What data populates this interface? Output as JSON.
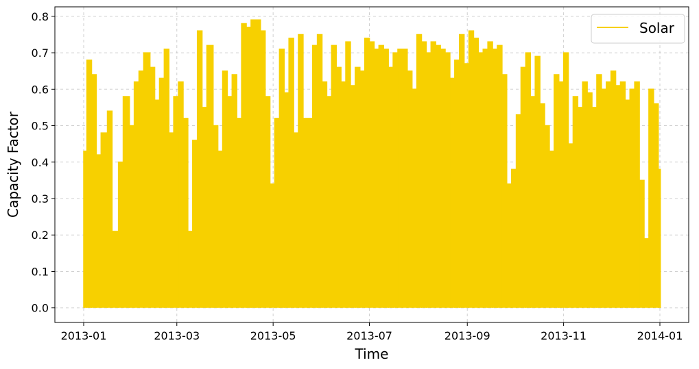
{
  "chart_data": {
    "type": "line",
    "xlabel": "Time",
    "ylabel": "Capacity Factor",
    "x_range": [
      "2013-01-01",
      "2014-01-01"
    ],
    "ylim": [
      -0.04,
      0.826
    ],
    "x_ticks": [
      "2013-01",
      "2013-03",
      "2013-05",
      "2013-07",
      "2013-09",
      "2013-11",
      "2014-01"
    ],
    "y_ticks": [
      "0.0",
      "0.1",
      "0.2",
      "0.3",
      "0.4",
      "0.5",
      "0.6",
      "0.7",
      "0.8"
    ],
    "grid": true,
    "legend_position": "top-right",
    "color": "#F7D000",
    "series": [
      {
        "name": "Solar",
        "x": [
          "2013-01-01",
          "2013-01-03",
          "2013-01-06",
          "2013-01-09",
          "2013-01-12",
          "2013-01-16",
          "2013-01-19",
          "2013-01-23",
          "2013-01-26",
          "2013-01-30",
          "2013-02-02",
          "2013-02-05",
          "2013-02-08",
          "2013-02-12",
          "2013-02-15",
          "2013-02-18",
          "2013-02-21",
          "2013-02-24",
          "2013-02-27",
          "2013-03-02",
          "2013-03-05",
          "2013-03-08",
          "2013-03-11",
          "2013-03-14",
          "2013-03-17",
          "2013-03-20",
          "2013-03-24",
          "2013-03-27",
          "2013-03-30",
          "2013-04-02",
          "2013-04-05",
          "2013-04-08",
          "2013-04-11",
          "2013-04-14",
          "2013-04-17",
          "2013-04-20",
          "2013-04-23",
          "2013-04-26",
          "2013-04-29",
          "2013-05-02",
          "2013-05-05",
          "2013-05-08",
          "2013-05-11",
          "2013-05-14",
          "2013-05-17",
          "2013-05-20",
          "2013-05-23",
          "2013-05-26",
          "2013-05-29",
          "2013-06-01",
          "2013-06-04",
          "2013-06-07",
          "2013-06-10",
          "2013-06-13",
          "2013-06-16",
          "2013-06-19",
          "2013-06-22",
          "2013-06-25",
          "2013-06-28",
          "2013-07-01",
          "2013-07-04",
          "2013-07-07",
          "2013-07-10",
          "2013-07-13",
          "2013-07-16",
          "2013-07-19",
          "2013-07-22",
          "2013-07-25",
          "2013-07-28",
          "2013-07-31",
          "2013-08-03",
          "2013-08-06",
          "2013-08-09",
          "2013-08-12",
          "2013-08-15",
          "2013-08-18",
          "2013-08-21",
          "2013-08-24",
          "2013-08-27",
          "2013-08-30",
          "2013-09-02",
          "2013-09-05",
          "2013-09-08",
          "2013-09-11",
          "2013-09-14",
          "2013-09-17",
          "2013-09-20",
          "2013-09-23",
          "2013-09-26",
          "2013-09-29",
          "2013-10-02",
          "2013-10-05",
          "2013-10-08",
          "2013-10-11",
          "2013-10-14",
          "2013-10-17",
          "2013-10-20",
          "2013-10-23",
          "2013-10-26",
          "2013-10-29",
          "2013-11-01",
          "2013-11-04",
          "2013-11-07",
          "2013-11-10",
          "2013-11-13",
          "2013-11-16",
          "2013-11-19",
          "2013-11-22",
          "2013-11-25",
          "2013-11-28",
          "2013-12-01",
          "2013-12-04",
          "2013-12-07",
          "2013-12-10",
          "2013-12-13",
          "2013-12-16",
          "2013-12-19",
          "2013-12-22",
          "2013-12-25",
          "2013-12-28",
          "2013-12-31"
        ],
        "y": [
          0.43,
          0.68,
          0.64,
          0.42,
          0.48,
          0.54,
          0.21,
          0.4,
          0.58,
          0.5,
          0.62,
          0.65,
          0.7,
          0.66,
          0.57,
          0.63,
          0.71,
          0.48,
          0.58,
          0.62,
          0.52,
          0.21,
          0.46,
          0.76,
          0.55,
          0.72,
          0.5,
          0.43,
          0.65,
          0.58,
          0.64,
          0.52,
          0.78,
          0.77,
          0.79,
          0.79,
          0.76,
          0.58,
          0.34,
          0.52,
          0.71,
          0.59,
          0.74,
          0.48,
          0.75,
          0.52,
          0.52,
          0.72,
          0.75,
          0.62,
          0.58,
          0.72,
          0.66,
          0.62,
          0.73,
          0.61,
          0.66,
          0.65,
          0.74,
          0.73,
          0.71,
          0.72,
          0.71,
          0.66,
          0.7,
          0.71,
          0.71,
          0.65,
          0.6,
          0.75,
          0.73,
          0.7,
          0.73,
          0.72,
          0.71,
          0.7,
          0.63,
          0.68,
          0.75,
          0.67,
          0.76,
          0.74,
          0.7,
          0.71,
          0.73,
          0.71,
          0.72,
          0.64,
          0.34,
          0.38,
          0.53,
          0.66,
          0.7,
          0.58,
          0.69,
          0.56,
          0.5,
          0.43,
          0.64,
          0.62,
          0.7,
          0.45,
          0.58,
          0.55,
          0.62,
          0.59,
          0.55,
          0.64,
          0.6,
          0.62,
          0.65,
          0.61,
          0.62,
          0.57,
          0.6,
          0.62,
          0.35,
          0.19,
          0.6,
          0.56,
          0.38
        ]
      }
    ]
  }
}
